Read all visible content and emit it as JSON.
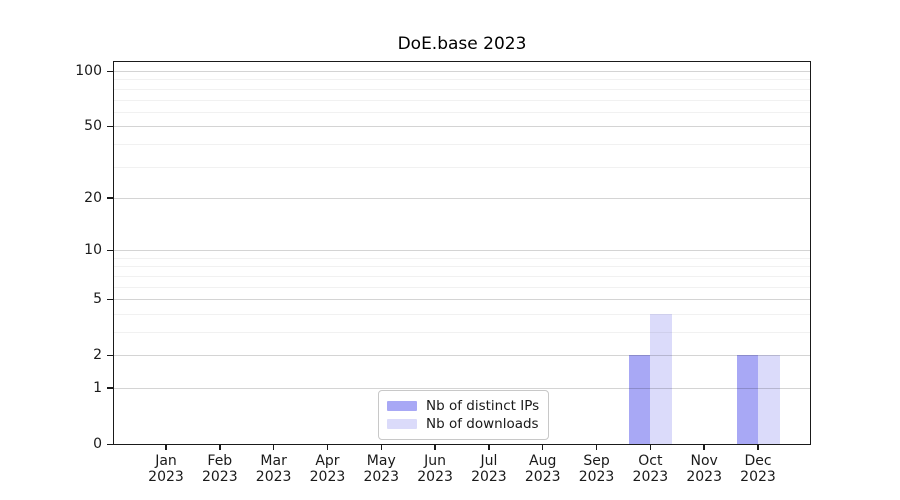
{
  "title": "DoE.base 2023",
  "chart_data": {
    "type": "bar",
    "title": "DoE.base 2023",
    "categories": [
      "Jan",
      "Feb",
      "Mar",
      "Apr",
      "May",
      "Jun",
      "Jul",
      "Aug",
      "Sep",
      "Oct",
      "Nov",
      "Dec"
    ],
    "category_year_line": "2023",
    "series": [
      {
        "name": "Nb of distinct IPs",
        "color": "#a8a8f5",
        "values": [
          0,
          0,
          0,
          0,
          0,
          0,
          0,
          0,
          0,
          2,
          0,
          2
        ]
      },
      {
        "name": "Nb of downloads",
        "color": "#dbdbfa",
        "values": [
          0,
          0,
          0,
          0,
          0,
          0,
          0,
          0,
          0,
          4,
          0,
          2
        ]
      }
    ],
    "y_axis": {
      "scale": "log10(value+1)",
      "tick_values": [
        0,
        1,
        2,
        5,
        10,
        20,
        50,
        100
      ],
      "minor_gridline_values": [
        3,
        4,
        6,
        7,
        8,
        9,
        30,
        40,
        60,
        70,
        80,
        90
      ],
      "ylim": [
        0,
        112
      ]
    },
    "x_axis": {
      "tick_line2": "2023"
    },
    "grid": {
      "major_color": "#d4d4d4",
      "minor_color": "#efefef",
      "grid_on": true
    },
    "legend": {
      "position": "inside-bottom-center"
    },
    "colors": {
      "background": "#ffffff",
      "axis": "#1a1a1a"
    }
  }
}
